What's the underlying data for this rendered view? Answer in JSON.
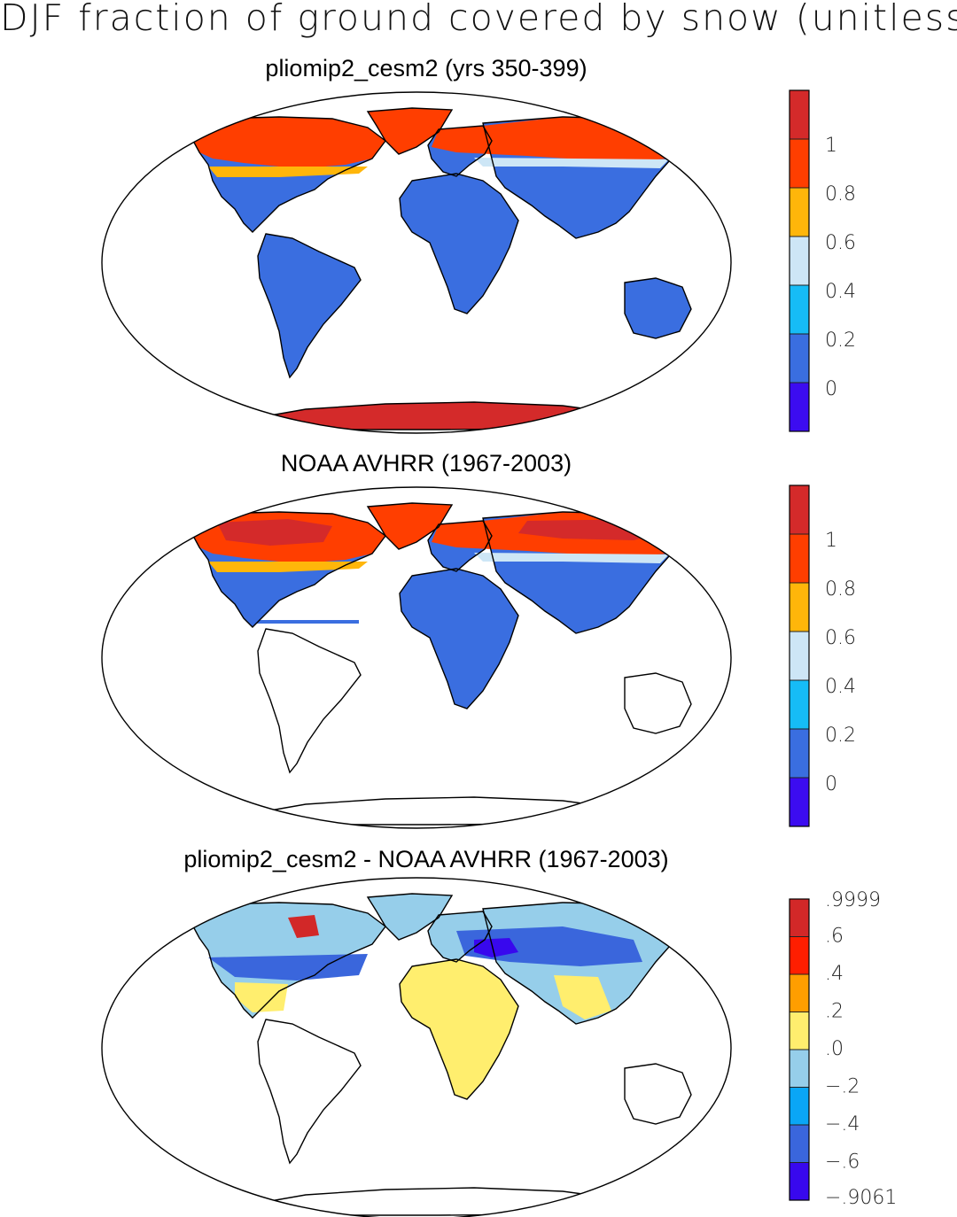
{
  "figure_title": "DJF fraction of ground covered by snow (unitless)",
  "chart_data": [
    {
      "type": "heatmap",
      "map_projection": "Robinson",
      "title": "pliomip2_cesm2 (yrs 350-399)",
      "variable": "fraction of ground covered by snow",
      "season": "DJF",
      "regions": [
        {
          "region": "Arctic / high-latitude North America & Eurasia",
          "bin": "0.8-1"
        },
        {
          "region": "Antarctica",
          "bin": ">1"
        },
        {
          "region": "Mid-latitude transition belts",
          "bin": "0.2-0.8"
        },
        {
          "region": "Low and southern latitudes (land)",
          "bin": "0-0.2"
        }
      ],
      "colorbar": {
        "tick_labels": [
          "1",
          "0.8",
          "0.6",
          "0.4",
          "0.2",
          "0"
        ],
        "colors": [
          "#d42a2a",
          "#ff3e00",
          "#ffb60a",
          "#cde6f6",
          "#16bcf6",
          "#3a6ee0",
          "#3c0cf0"
        ]
      }
    },
    {
      "type": "heatmap",
      "map_projection": "Robinson",
      "title": "NOAA AVHRR (1967-2003)",
      "variable": "fraction of ground covered by snow",
      "season": "DJF",
      "regions": [
        {
          "region": "Arctic / high-latitude North America & Eurasia",
          "bin": "0.8-1"
        },
        {
          "region": "Mid-latitude transition belts",
          "bin": "0.2-0.8"
        },
        {
          "region": "Tropics and Southern Hemisphere",
          "bin": "no data"
        }
      ],
      "colorbar": {
        "tick_labels": [
          "1",
          "0.8",
          "0.6",
          "0.4",
          "0.2",
          "0"
        ],
        "colors": [
          "#d42a2a",
          "#ff3e00",
          "#ffb60a",
          "#cde6f6",
          "#16bcf6",
          "#3a6ee0",
          "#3c0cf0"
        ]
      }
    },
    {
      "type": "heatmap",
      "map_projection": "Robinson",
      "title": "pliomip2_cesm2 - NOAA AVHRR (1967-2003)",
      "variable": "difference in fraction of ground covered by snow",
      "season": "DJF",
      "regions": [
        {
          "region": "Boreal and Arctic land",
          "bin": "-0.2-0.0"
        },
        {
          "region": "Mid-latitude belts",
          "bin": "-0.6 to -0.2"
        },
        {
          "region": "Subtropics (Sahara, Arabia, India, Mexico)",
          "bin": "0.0-0.2"
        },
        {
          "region": "Greenland / Hudson Bay patches",
          "bin": "0.6-0.9999"
        }
      ],
      "colorbar": {
        "tick_labels": [
          ".9999",
          ".6",
          ".4",
          ".2",
          ".0",
          "−.2",
          "−.4",
          "−.6",
          "−.9061"
        ],
        "colors": [
          "#d22828",
          "#ff1e00",
          "#ff9e00",
          "#ffee6e",
          "#96ceea",
          "#0aa6f6",
          "#3a66dc",
          "#3808ee"
        ]
      }
    }
  ]
}
